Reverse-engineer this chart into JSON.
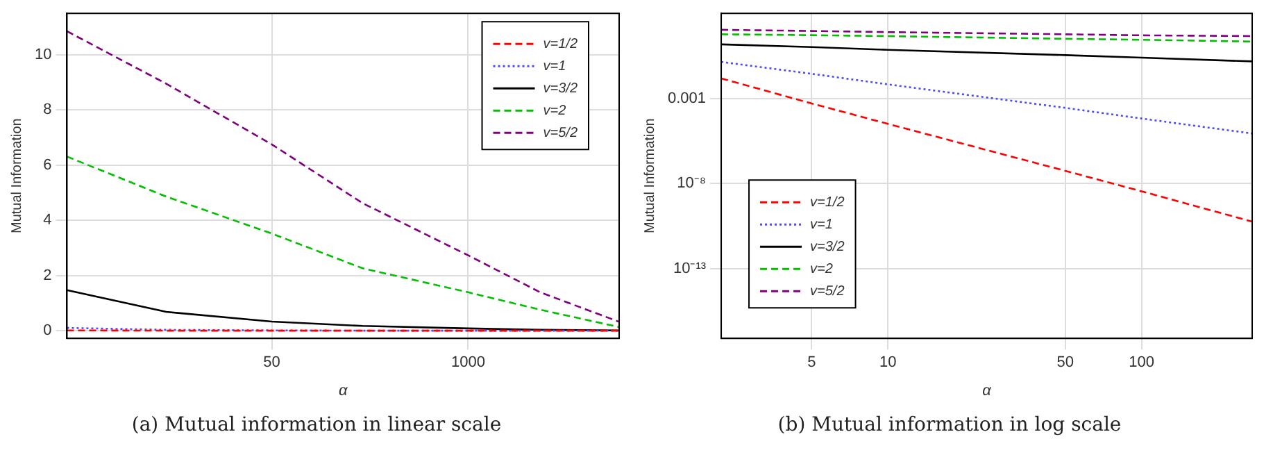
{
  "chart_data": [
    {
      "type": "line",
      "title": "(a) Mutual information in linear scale",
      "xlabel": "α",
      "ylabel": "Mutual Information",
      "log": "x",
      "xlim": [
        2.2,
        10000
      ],
      "xticks": [
        50,
        1000
      ],
      "ylim": [
        -0.28,
        11.5
      ],
      "yticks": [
        0,
        2,
        4,
        6,
        8,
        10
      ],
      "grid": true,
      "legend": "top right",
      "x": [
        2.2,
        10,
        50,
        200,
        1000,
        3000,
        10000
      ],
      "series": [
        {
          "name": "v=1/2",
          "color": "#ff0000",
          "line_style": "dashed",
          "values": [
            0.01,
            0,
            0,
            0,
            0,
            0,
            0
          ]
        },
        {
          "name": "v=1",
          "color": "#4a4aff",
          "line_style": "dotted",
          "values": [
            0.1,
            0.03,
            0.01,
            0,
            0,
            0,
            0
          ]
        },
        {
          "name": "v=3/2",
          "color": "#000000",
          "line_style": "solid",
          "values": [
            1.47,
            0.68,
            0.33,
            0.17,
            0.08,
            0.03,
            0.01
          ]
        },
        {
          "name": "v=2",
          "color": "#00c000",
          "line_style": "dashed",
          "values": [
            6.31,
            4.86,
            3.52,
            2.26,
            1.39,
            0.76,
            0.13
          ]
        },
        {
          "name": "v=5/2",
          "color": "#800080",
          "line_style": "dashed",
          "values": [
            10.85,
            8.95,
            6.75,
            4.62,
            2.73,
            1.39,
            0.32
          ]
        }
      ]
    },
    {
      "type": "line",
      "title": "(b) Mutual information in log scale",
      "xlabel": "α",
      "ylabel": "Mutual Information",
      "log": "xy",
      "xlim": [
        2.2,
        273
      ],
      "xticks": [
        5,
        10,
        50,
        100
      ],
      "ylim": [
        8e-18,
        100
      ],
      "yticks": [
        0.001,
        {
          "value": 1e-08,
          "label": "10⁻⁸"
        },
        {
          "value": 1e-13,
          "label": "10⁻¹³"
        }
      ],
      "grid": true,
      "legend": "bottom left",
      "x": [
        2.2,
        5,
        10,
        50,
        100,
        273
      ],
      "series": [
        {
          "name": "v=1/2",
          "color": "#ff0000",
          "line_style": "dashed",
          "values": [
            0.015,
            0.00051,
            3.2e-05,
            5.6e-08,
            3.5e-09,
            5.8e-11
          ]
        },
        {
          "name": "v=1",
          "color": "#4a4aff",
          "line_style": "dotted",
          "values": [
            0.14,
            0.028,
            0.0067,
            0.00028,
            6.6e-05,
            8.7e-06
          ]
        },
        {
          "name": "v=3/2",
          "color": "#000000",
          "line_style": "solid",
          "values": [
            1.5,
            1.05,
            0.72,
            0.35,
            0.25,
            0.15
          ]
        },
        {
          "name": "v=2",
          "color": "#00c000",
          "line_style": "dashed",
          "values": [
            5.9,
            5.2,
            4.6,
            3.2,
            2.8,
            2.2
          ]
        },
        {
          "name": "v=5/2",
          "color": "#800080",
          "line_style": "dashed",
          "values": [
            10.8,
            9.2,
            7.9,
            5.9,
            5.1,
            4.6
          ]
        }
      ]
    }
  ]
}
